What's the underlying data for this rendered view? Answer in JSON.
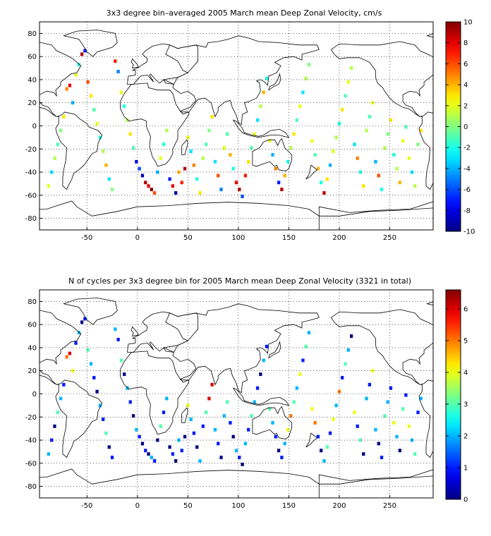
{
  "panels": [
    {
      "id": "velocity",
      "title": "3x3 degree bin–averaged 2005 March mean Deep Zonal Velocity, cm/s",
      "x_ticks": [
        "-50",
        "0",
        "50",
        "100",
        "150",
        "200",
        "250"
      ],
      "x_tick_values": [
        -50,
        0,
        50,
        100,
        150,
        200,
        250
      ],
      "y_ticks": [
        "80",
        "60",
        "40",
        "20",
        "0",
        "-20",
        "-40",
        "-60",
        "-80"
      ],
      "y_tick_values": [
        80,
        60,
        40,
        20,
        0,
        -20,
        -40,
        -60,
        -80
      ],
      "xlim": [
        -97,
        293
      ],
      "ylim": [
        -90,
        90
      ],
      "colorbar": {
        "ticks": [
          "10",
          "8",
          "6",
          "4",
          "2",
          "0",
          "-2",
          "-4",
          "-6",
          "-8",
          "-10"
        ],
        "tick_values": [
          10,
          8,
          6,
          4,
          2,
          0,
          -2,
          -4,
          -6,
          -8,
          -10
        ],
        "range": [
          -10,
          10
        ],
        "colormap": "jet"
      },
      "bin_size_deg": 3,
      "grid": "dotted"
    },
    {
      "id": "cycles",
      "title": "N of cycles per 3x3 degree bin for 2005 March mean Deep Zonal Velocity (3321 in total)",
      "x_ticks": [
        "-50",
        "0",
        "50",
        "100",
        "150",
        "200",
        "250"
      ],
      "x_tick_values": [
        -50,
        0,
        50,
        100,
        150,
        200,
        250
      ],
      "y_ticks": [
        "80",
        "60",
        "40",
        "20",
        "0",
        "-20",
        "-40",
        "-60",
        "-80"
      ],
      "y_tick_values": [
        80,
        60,
        40,
        20,
        0,
        -20,
        -40,
        -60,
        -80
      ],
      "xlim": [
        -97,
        293
      ],
      "ylim": [
        -90,
        90
      ],
      "colorbar": {
        "ticks": [
          "6",
          "5",
          "4",
          "3",
          "2",
          "1",
          "0"
        ],
        "tick_values": [
          6,
          5,
          4,
          3,
          2,
          1,
          0
        ],
        "range": [
          0,
          6.6
        ],
        "colormap": "jet"
      },
      "bin_size_deg": 3,
      "grid": "dotted"
    }
  ],
  "chart_data": [
    {
      "type": "heatmap",
      "title": "3x3 degree bin–averaged 2005 March mean Deep Zonal Velocity, cm/s",
      "value_range": [
        -10,
        10
      ],
      "bins_note": "sampled approximation",
      "bins": [
        [
          -88,
          -52,
          2
        ],
        [
          -85,
          -40,
          -3
        ],
        [
          -82,
          -28,
          1
        ],
        [
          -79,
          -16,
          -1
        ],
        [
          -76,
          -4,
          0
        ],
        [
          -73,
          8,
          3
        ],
        [
          -70,
          32,
          5
        ],
        [
          -67,
          35,
          8
        ],
        [
          -64,
          20,
          -4
        ],
        [
          -61,
          44,
          2
        ],
        [
          -58,
          53,
          -2
        ],
        [
          -55,
          62,
          9
        ],
        [
          -52,
          65,
          -7
        ],
        [
          -49,
          38,
          6
        ],
        [
          -46,
          26,
          3
        ],
        [
          -43,
          14,
          -1
        ],
        [
          -40,
          2,
          2
        ],
        [
          -37,
          -10,
          -2
        ],
        [
          -34,
          -22,
          1
        ],
        [
          -31,
          -34,
          4
        ],
        [
          -28,
          -46,
          -3
        ],
        [
          -25,
          -55,
          0
        ],
        [
          -22,
          56,
          7
        ],
        [
          -19,
          47,
          -5
        ],
        [
          -16,
          29,
          2
        ],
        [
          -13,
          17,
          -2
        ],
        [
          -10,
          5,
          1
        ],
        [
          -7,
          -7,
          3
        ],
        [
          -4,
          -19,
          -1
        ],
        [
          -1,
          -31,
          -8
        ],
        [
          2,
          -37,
          -6
        ],
        [
          5,
          -43,
          -9
        ],
        [
          8,
          -49,
          9
        ],
        [
          11,
          -52,
          8
        ],
        [
          14,
          -55,
          10
        ],
        [
          17,
          -58,
          6
        ],
        [
          20,
          -40,
          -4
        ],
        [
          23,
          -28,
          2
        ],
        [
          26,
          -16,
          -2
        ],
        [
          29,
          -4,
          1
        ],
        [
          32,
          -46,
          -7
        ],
        [
          35,
          -52,
          8
        ],
        [
          38,
          -58,
          -9
        ],
        [
          41,
          -40,
          4
        ],
        [
          44,
          -49,
          7
        ],
        [
          47,
          -37,
          9
        ],
        [
          50,
          -10,
          2
        ],
        [
          53,
          -22,
          -3
        ],
        [
          56,
          -34,
          5
        ],
        [
          59,
          -46,
          -2
        ],
        [
          62,
          -58,
          3
        ],
        [
          65,
          -28,
          1
        ],
        [
          68,
          -16,
          -1
        ],
        [
          71,
          -4,
          0
        ],
        [
          74,
          8,
          3
        ],
        [
          77,
          -31,
          -3
        ],
        [
          80,
          -43,
          6
        ],
        [
          83,
          -55,
          -5
        ],
        [
          86,
          -19,
          2
        ],
        [
          89,
          -7,
          -1
        ],
        [
          92,
          -25,
          4
        ],
        [
          95,
          -37,
          -2
        ],
        [
          98,
          -49,
          8
        ],
        [
          101,
          -55,
          9
        ],
        [
          104,
          -61,
          -6
        ],
        [
          107,
          -43,
          7
        ],
        [
          110,
          -31,
          3
        ],
        [
          113,
          -19,
          -1
        ],
        [
          116,
          -7,
          2
        ],
        [
          119,
          5,
          -3
        ],
        [
          122,
          17,
          1
        ],
        [
          125,
          29,
          4
        ],
        [
          128,
          41,
          -2
        ],
        [
          131,
          -13,
          2
        ],
        [
          134,
          -25,
          -4
        ],
        [
          137,
          -37,
          5
        ],
        [
          140,
          -49,
          -7
        ],
        [
          143,
          -55,
          9
        ],
        [
          146,
          -43,
          4
        ],
        [
          149,
          -31,
          -2
        ],
        [
          152,
          -19,
          1
        ],
        [
          155,
          -7,
          3
        ],
        [
          158,
          5,
          -1
        ],
        [
          161,
          17,
          2
        ],
        [
          164,
          29,
          -3
        ],
        [
          167,
          41,
          1
        ],
        [
          170,
          53,
          0
        ],
        [
          173,
          -13,
          2
        ],
        [
          176,
          -25,
          -1
        ],
        [
          179,
          -37,
          4
        ],
        [
          182,
          -49,
          -2
        ],
        [
          185,
          -58,
          9
        ],
        [
          188,
          -46,
          3
        ],
        [
          191,
          -34,
          -4
        ],
        [
          194,
          -22,
          2
        ],
        [
          197,
          -10,
          1
        ],
        [
          200,
          2,
          -2
        ],
        [
          203,
          14,
          3
        ],
        [
          206,
          26,
          -1
        ],
        [
          209,
          38,
          2
        ],
        [
          212,
          50,
          1
        ],
        [
          215,
          -16,
          -3
        ],
        [
          218,
          -28,
          5
        ],
        [
          221,
          -40,
          -2
        ],
        [
          224,
          -52,
          3
        ],
        [
          227,
          -4,
          1
        ],
        [
          230,
          8,
          -1
        ],
        [
          233,
          20,
          2
        ],
        [
          236,
          -31,
          -4
        ],
        [
          239,
          -43,
          6
        ],
        [
          242,
          -55,
          -2
        ],
        [
          245,
          -19,
          1
        ],
        [
          248,
          -7,
          0
        ],
        [
          251,
          5,
          3
        ],
        [
          254,
          -25,
          -2
        ],
        [
          257,
          -37,
          1
        ],
        [
          260,
          -49,
          4
        ],
        [
          263,
          -13,
          2
        ],
        [
          266,
          -1,
          -1
        ],
        [
          269,
          -28,
          2
        ],
        [
          272,
          -40,
          -3
        ],
        [
          275,
          -52,
          1
        ],
        [
          278,
          -16,
          0
        ],
        [
          281,
          -4,
          3
        ]
      ]
    },
    {
      "type": "heatmap",
      "title": "N of cycles per 3x3 degree bin for 2005 March mean Deep Zonal Velocity (3321 in total)",
      "total_cycles": 3321,
      "value_range": [
        0,
        6.6
      ],
      "bins_note": "sampled approximation",
      "bins": [
        [
          -88,
          -52,
          2
        ],
        [
          -85,
          -40,
          1
        ],
        [
          -82,
          -28,
          0
        ],
        [
          -79,
          -16,
          3
        ],
        [
          -76,
          -4,
          2
        ],
        [
          -73,
          8,
          1
        ],
        [
          -70,
          32,
          5
        ],
        [
          -67,
          35,
          6
        ],
        [
          -64,
          20,
          4
        ],
        [
          -61,
          44,
          1
        ],
        [
          -58,
          53,
          2
        ],
        [
          -55,
          62,
          0
        ],
        [
          -52,
          65,
          1
        ],
        [
          -49,
          38,
          3
        ],
        [
          -46,
          26,
          2
        ],
        [
          -43,
          14,
          1
        ],
        [
          -40,
          2,
          0
        ],
        [
          -37,
          -10,
          2
        ],
        [
          -34,
          -22,
          1
        ],
        [
          -31,
          -34,
          3
        ],
        [
          -28,
          -46,
          0
        ],
        [
          -25,
          -55,
          1
        ],
        [
          -22,
          56,
          2
        ],
        [
          -19,
          47,
          1
        ],
        [
          -16,
          29,
          3
        ],
        [
          -13,
          17,
          0
        ],
        [
          -10,
          5,
          2
        ],
        [
          -7,
          -7,
          1
        ],
        [
          -4,
          -19,
          0
        ],
        [
          -1,
          -31,
          2
        ],
        [
          2,
          -37,
          1
        ],
        [
          5,
          -43,
          0
        ],
        [
          8,
          -49,
          1
        ],
        [
          11,
          -52,
          0
        ],
        [
          14,
          -55,
          2
        ],
        [
          17,
          -58,
          1
        ],
        [
          20,
          -40,
          0
        ],
        [
          23,
          -28,
          3
        ],
        [
          26,
          -16,
          1
        ],
        [
          29,
          -4,
          2
        ],
        [
          32,
          -46,
          0
        ],
        [
          35,
          -52,
          1
        ],
        [
          38,
          -58,
          0
        ],
        [
          41,
          -40,
          2
        ],
        [
          44,
          -49,
          1
        ],
        [
          47,
          -37,
          0
        ],
        [
          50,
          -10,
          4
        ],
        [
          53,
          -22,
          2
        ],
        [
          56,
          -34,
          1
        ],
        [
          59,
          -46,
          0
        ],
        [
          62,
          -58,
          2
        ],
        [
          65,
          -28,
          1
        ],
        [
          68,
          -16,
          3
        ],
        [
          71,
          -4,
          6
        ],
        [
          74,
          8,
          6
        ],
        [
          77,
          -31,
          2
        ],
        [
          80,
          -43,
          1
        ],
        [
          83,
          -55,
          0
        ],
        [
          86,
          -19,
          2
        ],
        [
          89,
          -7,
          3
        ],
        [
          92,
          -25,
          1
        ],
        [
          95,
          -37,
          0
        ],
        [
          98,
          -49,
          2
        ],
        [
          101,
          -55,
          1
        ],
        [
          104,
          -61,
          0
        ],
        [
          107,
          -43,
          2
        ],
        [
          110,
          -31,
          1
        ],
        [
          113,
          -19,
          3
        ],
        [
          116,
          -7,
          2
        ],
        [
          119,
          5,
          1
        ],
        [
          122,
          17,
          0
        ],
        [
          125,
          29,
          2
        ],
        [
          128,
          41,
          1
        ],
        [
          131,
          -13,
          3
        ],
        [
          134,
          -25,
          2
        ],
        [
          137,
          -37,
          1
        ],
        [
          140,
          -49,
          0
        ],
        [
          143,
          -55,
          1
        ],
        [
          146,
          -43,
          2
        ],
        [
          149,
          -31,
          4
        ],
        [
          152,
          -19,
          5
        ],
        [
          155,
          -7,
          3
        ],
        [
          158,
          5,
          2
        ],
        [
          161,
          17,
          4
        ],
        [
          164,
          29,
          1
        ],
        [
          167,
          41,
          3
        ],
        [
          170,
          53,
          2
        ],
        [
          173,
          -13,
          4
        ],
        [
          176,
          -25,
          5
        ],
        [
          179,
          -37,
          1
        ],
        [
          182,
          -49,
          0
        ],
        [
          185,
          -58,
          2
        ],
        [
          188,
          -46,
          3
        ],
        [
          191,
          -34,
          1
        ],
        [
          194,
          -22,
          4
        ],
        [
          197,
          -10,
          2
        ],
        [
          200,
          2,
          5
        ],
        [
          203,
          14,
          1
        ],
        [
          206,
          26,
          3
        ],
        [
          209,
          38,
          2
        ],
        [
          212,
          50,
          0
        ],
        [
          215,
          -16,
          4
        ],
        [
          218,
          -28,
          1
        ],
        [
          221,
          -40,
          3
        ],
        [
          224,
          -52,
          0
        ],
        [
          227,
          -4,
          2
        ],
        [
          230,
          8,
          1
        ],
        [
          233,
          20,
          4
        ],
        [
          236,
          -31,
          2
        ],
        [
          239,
          -43,
          0
        ],
        [
          242,
          -55,
          1
        ],
        [
          245,
          -19,
          3
        ],
        [
          248,
          -7,
          2
        ],
        [
          251,
          5,
          1
        ],
        [
          254,
          -25,
          4
        ],
        [
          257,
          -37,
          2
        ],
        [
          260,
          -49,
          0
        ],
        [
          263,
          -13,
          3
        ],
        [
          266,
          -1,
          1
        ],
        [
          269,
          -28,
          4
        ],
        [
          272,
          -40,
          2
        ],
        [
          275,
          -52,
          3
        ],
        [
          278,
          -16,
          1
        ],
        [
          281,
          -4,
          2
        ]
      ]
    }
  ]
}
